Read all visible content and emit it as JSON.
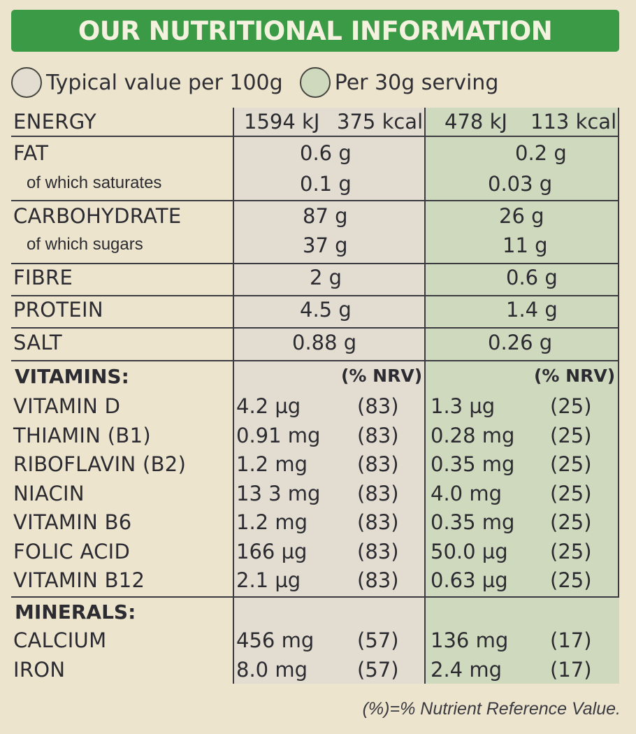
{
  "title": "OUR NUTRITIONAL INFORMATION",
  "legend": {
    "per100": "Typical value per 100g",
    "perServing": "Per 30g serving"
  },
  "energy": {
    "label": "ENERGY",
    "kj100": "1594 kJ",
    "kcal100": "375 kcal",
    "kjServ": "478 kJ",
    "kcalServ": "113 kcal"
  },
  "macros": {
    "fat": {
      "label": "FAT",
      "v100": "0.6 g",
      "vServ": "0.2 g"
    },
    "saturates": {
      "label": "of which saturates",
      "v100": "0.1 g",
      "vServ": "0.03 g"
    },
    "carb": {
      "label": "CARBOHYDRATE",
      "v100": "87 g",
      "vServ": "26 g"
    },
    "sugars": {
      "label": "of which sugars",
      "v100": "37 g",
      "vServ": "11 g"
    },
    "fibre": {
      "label": "FIBRE",
      "v100": "2 g",
      "vServ": "0.6 g"
    },
    "protein": {
      "label": "PROTEIN",
      "v100": "4.5 g",
      "vServ": "1.4 g"
    },
    "salt": {
      "label": "SALT",
      "v100": "0.88 g",
      "vServ": "0.26 g"
    }
  },
  "vitamins": {
    "heading": "VITAMINS:",
    "nrv100": "(% NRV)",
    "nrvServ": "(% NRV)",
    "items": [
      {
        "name": "VITAMIN D",
        "v100": "4.2 µg",
        "n100": "(83)",
        "vServ": "1.3 µg",
        "nServ": "(25)"
      },
      {
        "name": "THIAMIN (B1)",
        "v100": "0.91 mg",
        "n100": "(83)",
        "vServ": "0.28 mg",
        "nServ": "(25)"
      },
      {
        "name": "RIBOFLAVIN (B2)",
        "v100": "1.2 mg",
        "n100": "(83)",
        "vServ": "0.35 mg",
        "nServ": "(25)"
      },
      {
        "name": "NIACIN",
        "v100": "13 3 mg",
        "n100": "(83)",
        "vServ": "4.0 mg",
        "nServ": "(25)"
      },
      {
        "name": "VITAMIN B6",
        "v100": "1.2 mg",
        "n100": "(83)",
        "vServ": "0.35 mg",
        "nServ": "(25)"
      },
      {
        "name": "FOLIC ACID",
        "v100": "166 µg",
        "n100": "(83)",
        "vServ": "50.0 µg",
        "nServ": "(25)"
      },
      {
        "name": "VITAMIN B12",
        "v100": "2.1 µg",
        "n100": "(83)",
        "vServ": "0.63 µg",
        "nServ": "(25)"
      }
    ]
  },
  "minerals": {
    "heading": "MINERALS:",
    "items": [
      {
        "name": "CALCIUM",
        "v100": "456 mg",
        "n100": "(57)",
        "vServ": "136 mg",
        "nServ": "(17)"
      },
      {
        "name": "IRON",
        "v100": "8.0 mg",
        "n100": "(57)",
        "vServ": "2.4 mg",
        "nServ": "(17)"
      }
    ]
  },
  "footnote": "(%)=% Nutrient Reference Value.",
  "colors": {
    "banner": "#3a9a45",
    "per100_column": "#e2ddd0",
    "perServing_column": "#cfd9bd",
    "background": "#ece4cd"
  }
}
